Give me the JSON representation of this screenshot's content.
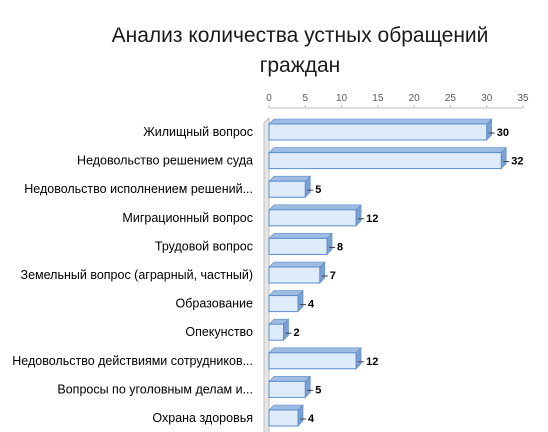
{
  "chart_data": {
    "type": "bar",
    "orientation": "horizontal",
    "title_line1": "Анализ количества устных обращений",
    "title_line2": "граждан",
    "categories": [
      "Жилищный вопрос",
      "Недовольство решением суда",
      "Недовольство исполнением решений...",
      "Миграционный вопрос",
      "Трудовой вопрос",
      "Земельный вопрос (аграрный, частный)",
      "Образование",
      "Опекунство",
      "Недовольство действиями сотрудников...",
      "Вопросы по уголовным делам и...",
      "Охрана здоровья"
    ],
    "values": [
      30,
      32,
      5,
      12,
      8,
      7,
      4,
      2,
      12,
      5,
      4
    ],
    "x_ticks": [
      "0",
      "5",
      "10",
      "15",
      "20",
      "25",
      "30",
      "35"
    ],
    "xlim": [
      0,
      35
    ],
    "grid": false,
    "bar_style": "3d",
    "colors": {
      "bar_front": "#deebfa",
      "bar_stroke": "#5b8cc8",
      "bar_top": "#9dbbe3",
      "bar_side": "#7ba1d4",
      "axis": "#bfbfbf",
      "label": "#000000",
      "tick": "#595959"
    }
  }
}
